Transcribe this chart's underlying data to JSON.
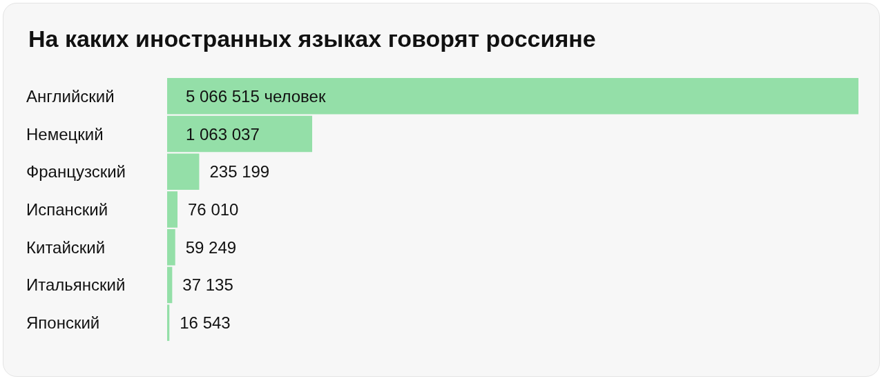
{
  "chart_data": {
    "type": "bar",
    "orientation": "horizontal",
    "title": "На каких иностранных языках говорят россияне",
    "categories": [
      "Английский",
      "Немецкий",
      "Французский",
      "Испанский",
      "Китайский",
      "Итальянский",
      "Японский"
    ],
    "values": [
      5066515,
      1063037,
      235199,
      76010,
      59249,
      37135,
      16543
    ],
    "value_labels": [
      "5 066 515 человек",
      "1 063 037",
      "235 199",
      "76 010",
      "59 249",
      "37 135",
      "16 543"
    ],
    "color": "#94dfa8"
  }
}
